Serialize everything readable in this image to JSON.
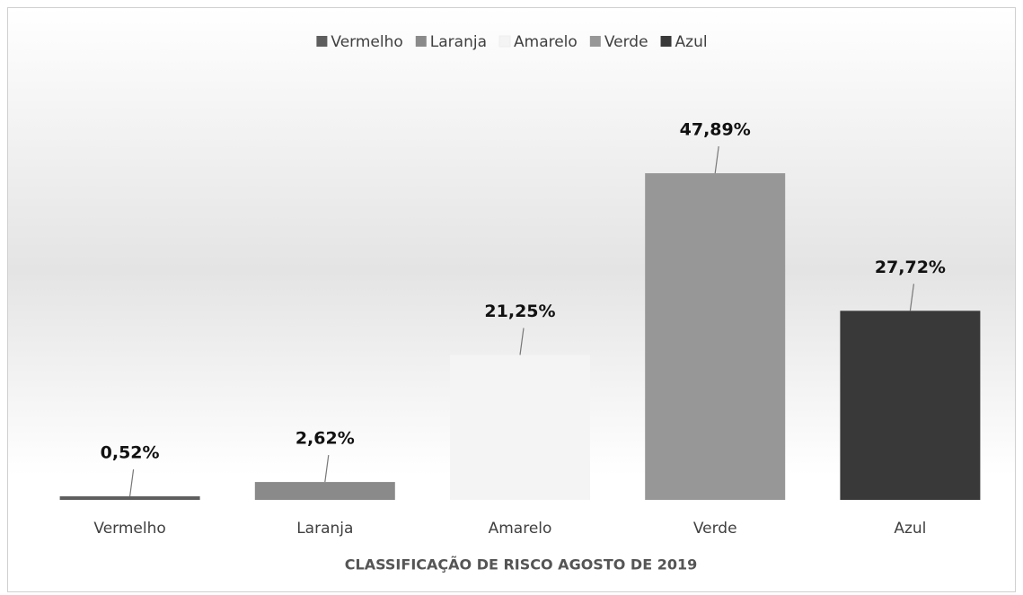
{
  "chart_data": {
    "type": "bar",
    "x_label": "CLASSIFICAÇÃO DE RISCO AGOSTO DE 2019",
    "categories": [
      "Vermelho",
      "Laranja",
      "Amarelo",
      "Verde",
      "Azul"
    ],
    "values": [
      0.52,
      2.62,
      21.25,
      47.89,
      27.72
    ],
    "value_labels": [
      "0,52%",
      "2,62%",
      "21,25%",
      "47,89%",
      "27,72%"
    ],
    "colors": [
      "#5e5e5e",
      "#8a8a8a",
      "#f4f4f4",
      "#979797",
      "#393939"
    ],
    "ylim": [
      0,
      60
    ],
    "legend": "top"
  }
}
